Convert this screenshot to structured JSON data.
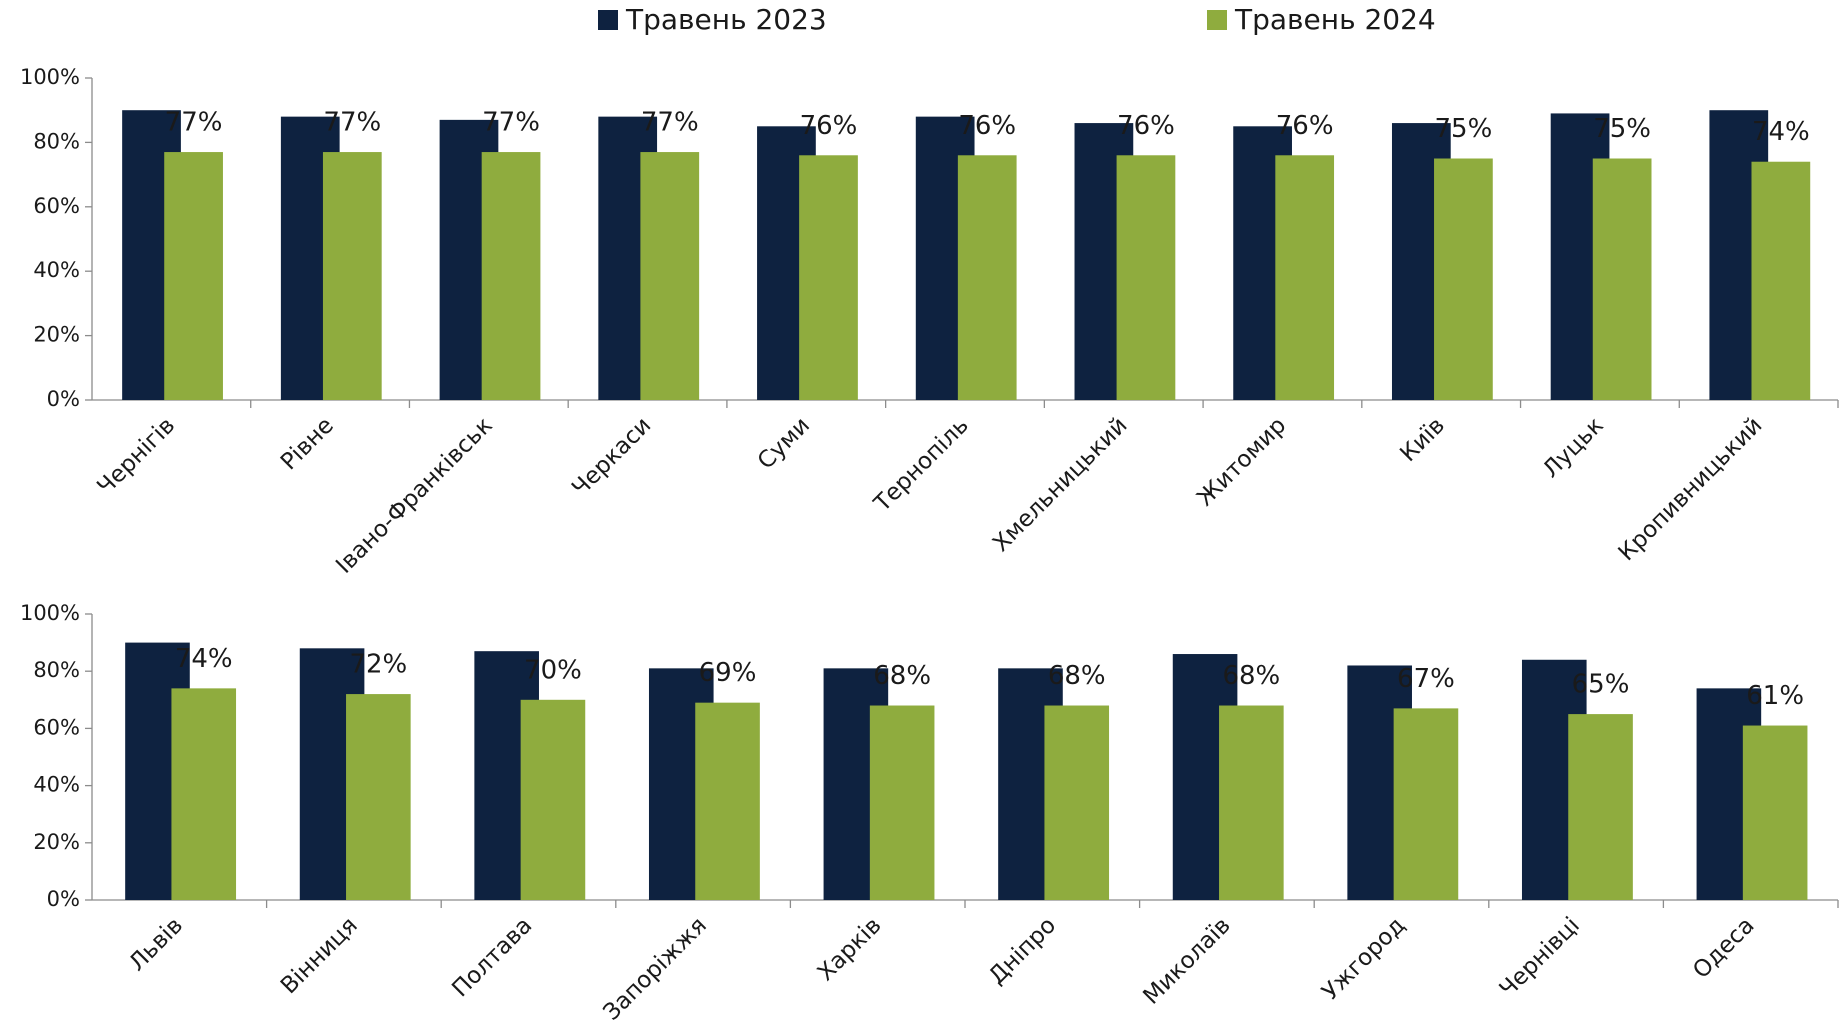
{
  "chart_data": [
    {
      "type": "bar",
      "categories": [
        "Чернігів",
        "Рівне",
        "Івано-Франківськ",
        "Черкаси",
        "Суми",
        "Тернопіль",
        "Хмельницький",
        "Житомир",
        "Київ",
        "Луцьк",
        "Кропивницький"
      ],
      "series": [
        {
          "name": "Травень 2023",
          "color": "#0e2240",
          "values": [
            90,
            88,
            87,
            88,
            85,
            88,
            86,
            85,
            86,
            89,
            90
          ]
        },
        {
          "name": "Травень 2024",
          "color": "#8fac3e",
          "values": [
            77,
            77,
            77,
            77,
            76,
            76,
            76,
            76,
            75,
            75,
            74
          ],
          "value_labels": [
            "77%",
            "77%",
            "77%",
            "77%",
            "76%",
            "76%",
            "76%",
            "76%",
            "75%",
            "75%",
            "74%"
          ]
        }
      ],
      "ylim": [
        0,
        100
      ],
      "yticks": [
        {
          "value": 0,
          "label": "0%"
        },
        {
          "value": 20,
          "label": "20%"
        },
        {
          "value": 40,
          "label": "40%"
        },
        {
          "value": 60,
          "label": "60%"
        },
        {
          "value": 80,
          "label": "80%"
        },
        {
          "value": 100,
          "label": "100%"
        }
      ],
      "grid": false
    },
    {
      "type": "bar",
      "categories": [
        "Львів",
        "Вінниця",
        "Полтава",
        "Запоріжжя",
        "Харків",
        "Дніпро",
        "Миколаїв",
        "Ужгород",
        "Чернівці",
        "Одеса"
      ],
      "series": [
        {
          "color": "#0e2240",
          "values": [
            90,
            88,
            87,
            81,
            81,
            81,
            86,
            82,
            84,
            74
          ]
        },
        {
          "color": "#8fac3e",
          "values": [
            74,
            72,
            70,
            69,
            68,
            68,
            68,
            67,
            65,
            61
          ],
          "value_labels": [
            "74%",
            "72%",
            "70%",
            "69%",
            "68%",
            "68%",
            "68%",
            "67%",
            "65%",
            "61%"
          ]
        }
      ],
      "ylim": [
        0,
        100
      ],
      "yticks": [
        {
          "value": 0,
          "label": "0%"
        },
        {
          "value": 20,
          "label": "20%"
        },
        {
          "value": 40,
          "label": "40%"
        },
        {
          "value": 60,
          "label": "60%"
        },
        {
          "value": 80,
          "label": "80%"
        },
        {
          "value": 100,
          "label": "100%"
        }
      ],
      "grid": false
    }
  ]
}
